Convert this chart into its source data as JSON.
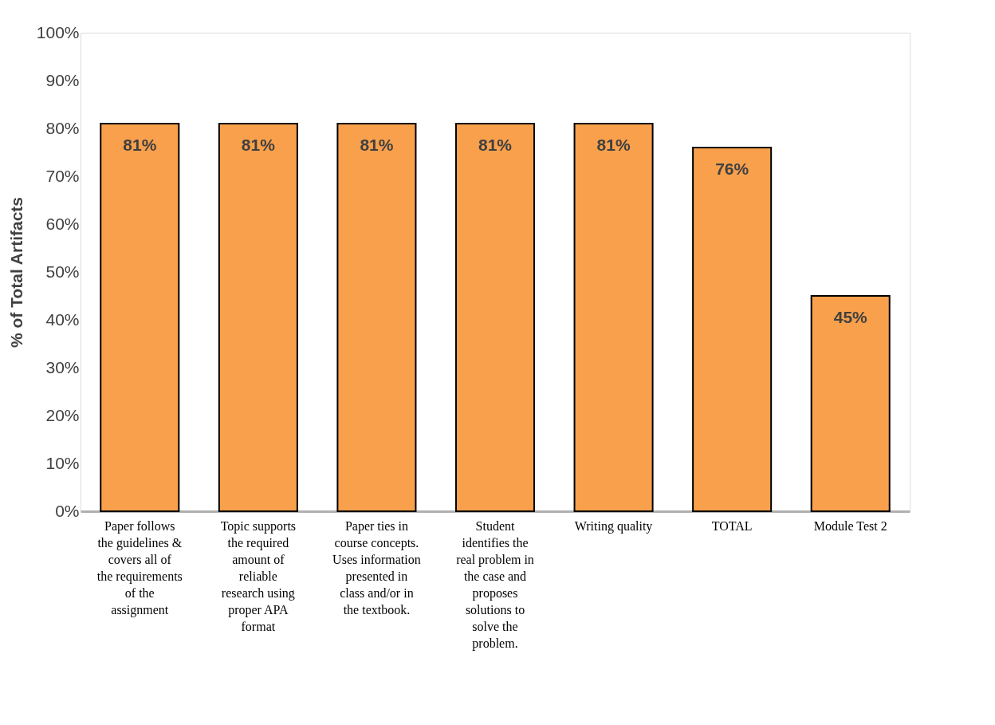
{
  "chart_data": {
    "type": "bar",
    "ylabel": "% of Total Artifacts",
    "categories": [
      "Paper follows the guidelines & covers all of the requirements of the assignment",
      "Topic supports the required amount of reliable research using proper APA format",
      "Paper ties in course concepts. Uses information presented in class and/or in the textbook.",
      "Student identifies the real problem in the case and proposes solutions to solve the problem.",
      "Writing quality",
      "TOTAL",
      "Module Test 2"
    ],
    "values": [
      81,
      81,
      81,
      81,
      81,
      76,
      45
    ],
    "color": "#f9a04c",
    "value_labels": [
      "81%",
      "81%",
      "81%",
      "81%",
      "81%",
      "76%",
      "45%"
    ],
    "ylim": [
      0,
      100
    ],
    "yticks": [
      {
        "value": 0,
        "label": "0%"
      },
      {
        "value": 10,
        "label": "10%"
      },
      {
        "value": 20,
        "label": "20%"
      },
      {
        "value": 30,
        "label": "30%"
      },
      {
        "value": 40,
        "label": "40%"
      },
      {
        "value": 50,
        "label": "50%"
      },
      {
        "value": 60,
        "label": "60%"
      },
      {
        "value": 70,
        "label": "70%"
      },
      {
        "value": 80,
        "label": "80%"
      },
      {
        "value": 90,
        "label": "90%"
      },
      {
        "value": 100,
        "label": "100%"
      }
    ],
    "grid": false
  }
}
